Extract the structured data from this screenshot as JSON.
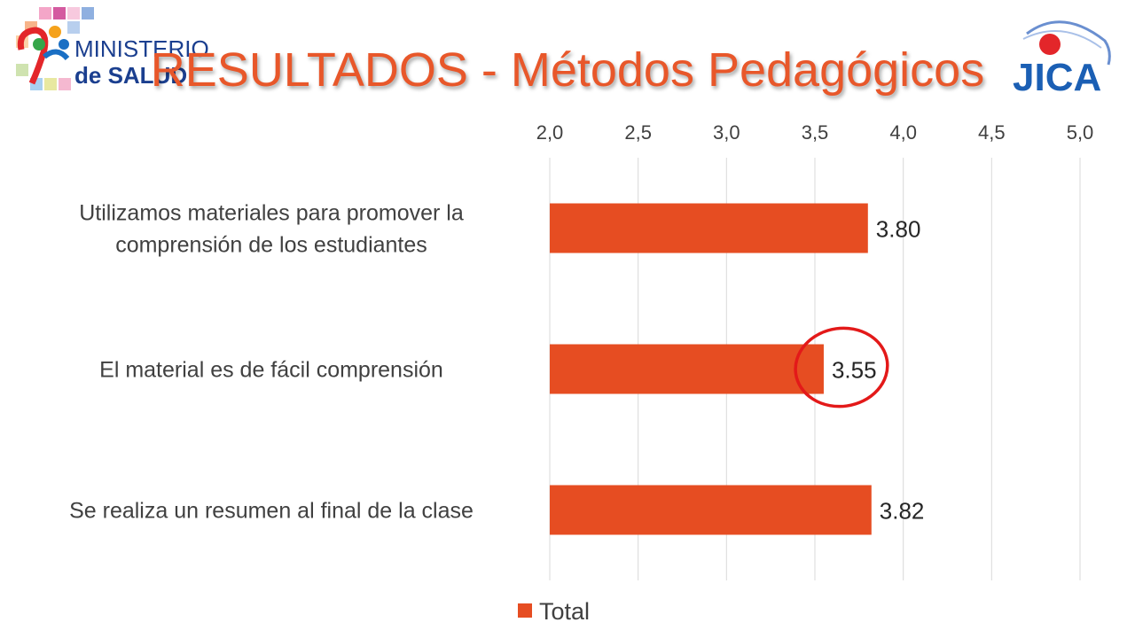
{
  "header": {
    "title": "RESULTADOS - Métodos Pedagógicos",
    "logo_left_line1": "MINISTERIO",
    "logo_left_line2": "de SALUD",
    "logo_right_text": "JICA"
  },
  "colors": {
    "bar": "#e64d22",
    "title": "#e8572a",
    "highlight_circle": "#e31919",
    "gridline": "#d9d9d9"
  },
  "chart_data": {
    "type": "bar",
    "orientation": "horizontal",
    "categories": [
      "Utilizamos materiales para promover la comprensión de los estudiantes",
      "El material es de fácil comprensión",
      "Se realiza un resumen al final de la clase"
    ],
    "category_lines": [
      [
        "Utilizamos materiales para promover la",
        "comprensión de los estudiantes"
      ],
      [
        "El material es de fácil comprensión"
      ],
      [
        "Se realiza un resumen al final de la clase"
      ]
    ],
    "series": [
      {
        "name": "Total",
        "values": [
          3.8,
          3.55,
          3.82
        ]
      }
    ],
    "value_labels": [
      "3.80",
      "3.55",
      "3.82"
    ],
    "xlim": [
      2.0,
      5.0
    ],
    "xticks": [
      "2,0",
      "2,5",
      "3,0",
      "3,5",
      "4,0",
      "4,5",
      "5,0"
    ],
    "xtick_values": [
      2.0,
      2.5,
      3.0,
      3.5,
      4.0,
      4.5,
      5.0
    ],
    "axis_position": "top",
    "grid": true,
    "legend": "bottom",
    "highlighted_category": "El material es de fácil comprensión"
  }
}
